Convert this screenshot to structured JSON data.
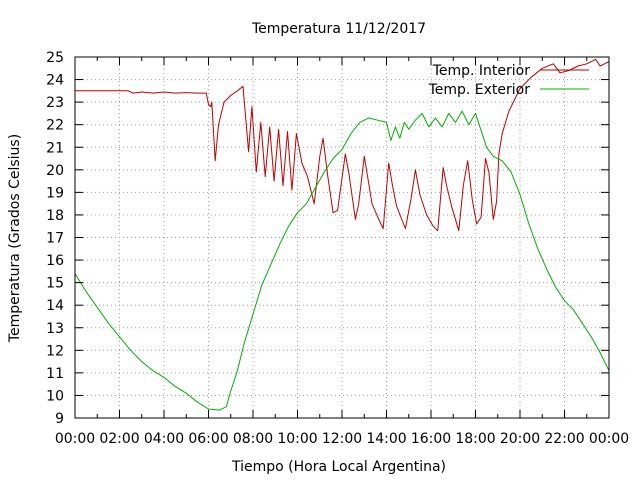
{
  "chart_data": {
    "type": "line",
    "title": "Temperatura 11/12/2017",
    "xlabel": "Tiempo (Hora Local Argentina)",
    "ylabel": "Temperatura (Grados Celsius)",
    "xlim": [
      0,
      24
    ],
    "ylim": [
      9,
      25
    ],
    "grid": true,
    "legend_position": "top-right",
    "x_tick_labels": [
      "00:00",
      "02:00",
      "04:00",
      "06:00",
      "08:00",
      "10:00",
      "12:00",
      "14:00",
      "16:00",
      "18:00",
      "20:00",
      "22:00",
      "00:00"
    ],
    "y_tick_labels": [
      "9",
      "10",
      "11",
      "12",
      "13",
      "14",
      "15",
      "16",
      "17",
      "18",
      "19",
      "20",
      "21",
      "22",
      "23",
      "24",
      "25"
    ],
    "series": [
      {
        "name": "Temp. Interior",
        "color": "#c00000",
        "points": [
          [
            0,
            23.5
          ],
          [
            1,
            23.5
          ],
          [
            2,
            23.5
          ],
          [
            2.4,
            23.5
          ],
          [
            2.6,
            23.4
          ],
          [
            3,
            23.45
          ],
          [
            3.5,
            23.4
          ],
          [
            4,
            23.45
          ],
          [
            4.5,
            23.4
          ],
          [
            5,
            23.42
          ],
          [
            5.5,
            23.4
          ],
          [
            5.9,
            23.4
          ],
          [
            6.0,
            22.9
          ],
          [
            6.1,
            22.8
          ],
          [
            6.15,
            23.0
          ],
          [
            6.3,
            20.4
          ],
          [
            6.45,
            22.0
          ],
          [
            6.7,
            23.0
          ],
          [
            7.0,
            23.3
          ],
          [
            7.3,
            23.5
          ],
          [
            7.55,
            23.7
          ],
          [
            7.8,
            20.8
          ],
          [
            7.95,
            22.8
          ],
          [
            8.15,
            19.9
          ],
          [
            8.35,
            22.1
          ],
          [
            8.55,
            19.7
          ],
          [
            8.75,
            21.9
          ],
          [
            8.95,
            19.5
          ],
          [
            9.15,
            21.8
          ],
          [
            9.35,
            19.3
          ],
          [
            9.55,
            21.7
          ],
          [
            9.75,
            19.1
          ],
          [
            9.95,
            21.6
          ],
          [
            10.2,
            20.3
          ],
          [
            10.45,
            19.7
          ],
          [
            10.75,
            18.5
          ],
          [
            11.0,
            20.6
          ],
          [
            11.15,
            21.4
          ],
          [
            11.35,
            19.8
          ],
          [
            11.6,
            18.1
          ],
          [
            11.8,
            18.2
          ],
          [
            12.15,
            20.7
          ],
          [
            12.3,
            19.9
          ],
          [
            12.6,
            17.8
          ],
          [
            12.75,
            18.5
          ],
          [
            13.0,
            20.6
          ],
          [
            13.15,
            19.7
          ],
          [
            13.35,
            18.5
          ],
          [
            13.7,
            17.7
          ],
          [
            13.85,
            17.4
          ],
          [
            14.1,
            20.3
          ],
          [
            14.25,
            19.4
          ],
          [
            14.45,
            18.4
          ],
          [
            14.85,
            17.4
          ],
          [
            15.1,
            18.7
          ],
          [
            15.3,
            20.0
          ],
          [
            15.5,
            18.9
          ],
          [
            15.8,
            18.0
          ],
          [
            16.1,
            17.5
          ],
          [
            16.3,
            17.3
          ],
          [
            16.55,
            20.1
          ],
          [
            16.7,
            19.3
          ],
          [
            16.95,
            18.3
          ],
          [
            17.25,
            17.3
          ],
          [
            17.45,
            19.3
          ],
          [
            17.65,
            20.4
          ],
          [
            17.85,
            18.7
          ],
          [
            18.05,
            17.6
          ],
          [
            18.25,
            17.9
          ],
          [
            18.45,
            20.5
          ],
          [
            18.6,
            19.9
          ],
          [
            18.8,
            17.8
          ],
          [
            18.95,
            18.6
          ],
          [
            19.05,
            20.7
          ],
          [
            19.2,
            21.6
          ],
          [
            19.5,
            22.6
          ],
          [
            20.0,
            23.6
          ],
          [
            20.5,
            24.1
          ],
          [
            21.0,
            24.5
          ],
          [
            21.5,
            24.7
          ],
          [
            21.8,
            24.3
          ],
          [
            22.2,
            24.4
          ],
          [
            22.6,
            24.6
          ],
          [
            23.0,
            24.7
          ],
          [
            23.4,
            24.9
          ],
          [
            23.6,
            24.6
          ],
          [
            23.8,
            24.7
          ],
          [
            24.0,
            24.8
          ]
        ]
      },
      {
        "name": "Temp. Exterior",
        "color": "#00b000",
        "points": [
          [
            0,
            15.4
          ],
          [
            0.5,
            14.6
          ],
          [
            1,
            13.9
          ],
          [
            1.5,
            13.2
          ],
          [
            2,
            12.6
          ],
          [
            2.5,
            12.0
          ],
          [
            3,
            11.5
          ],
          [
            3.5,
            11.1
          ],
          [
            4,
            10.8
          ],
          [
            4.5,
            10.4
          ],
          [
            5,
            10.1
          ],
          [
            5.5,
            9.7
          ],
          [
            6.0,
            9.4
          ],
          [
            6.5,
            9.35
          ],
          [
            6.8,
            9.5
          ],
          [
            7.0,
            10.2
          ],
          [
            7.3,
            11.1
          ],
          [
            7.6,
            12.3
          ],
          [
            8.0,
            13.6
          ],
          [
            8.4,
            14.9
          ],
          [
            8.8,
            15.8
          ],
          [
            9.2,
            16.7
          ],
          [
            9.6,
            17.5
          ],
          [
            10.0,
            18.1
          ],
          [
            10.4,
            18.5
          ],
          [
            10.8,
            19.2
          ],
          [
            11.2,
            19.9
          ],
          [
            11.6,
            20.5
          ],
          [
            12.0,
            20.9
          ],
          [
            12.4,
            21.6
          ],
          [
            12.8,
            22.1
          ],
          [
            13.2,
            22.3
          ],
          [
            13.6,
            22.2
          ],
          [
            14.0,
            22.1
          ],
          [
            14.2,
            21.3
          ],
          [
            14.4,
            21.9
          ],
          [
            14.6,
            21.4
          ],
          [
            14.8,
            22.1
          ],
          [
            15.0,
            21.8
          ],
          [
            15.3,
            22.2
          ],
          [
            15.6,
            22.5
          ],
          [
            15.9,
            21.9
          ],
          [
            16.2,
            22.3
          ],
          [
            16.5,
            21.9
          ],
          [
            16.8,
            22.5
          ],
          [
            17.1,
            22.1
          ],
          [
            17.4,
            22.6
          ],
          [
            17.7,
            22.0
          ],
          [
            18.0,
            22.5
          ],
          [
            18.2,
            21.9
          ],
          [
            18.5,
            21.0
          ],
          [
            18.8,
            20.6
          ],
          [
            19.2,
            20.4
          ],
          [
            19.6,
            19.9
          ],
          [
            20.0,
            18.9
          ],
          [
            20.4,
            17.6
          ],
          [
            20.8,
            16.5
          ],
          [
            21.2,
            15.6
          ],
          [
            21.6,
            14.8
          ],
          [
            22.0,
            14.2
          ],
          [
            22.4,
            13.8
          ],
          [
            22.8,
            13.2
          ],
          [
            23.2,
            12.6
          ],
          [
            23.6,
            11.9
          ],
          [
            24.0,
            11.1
          ]
        ]
      }
    ]
  }
}
